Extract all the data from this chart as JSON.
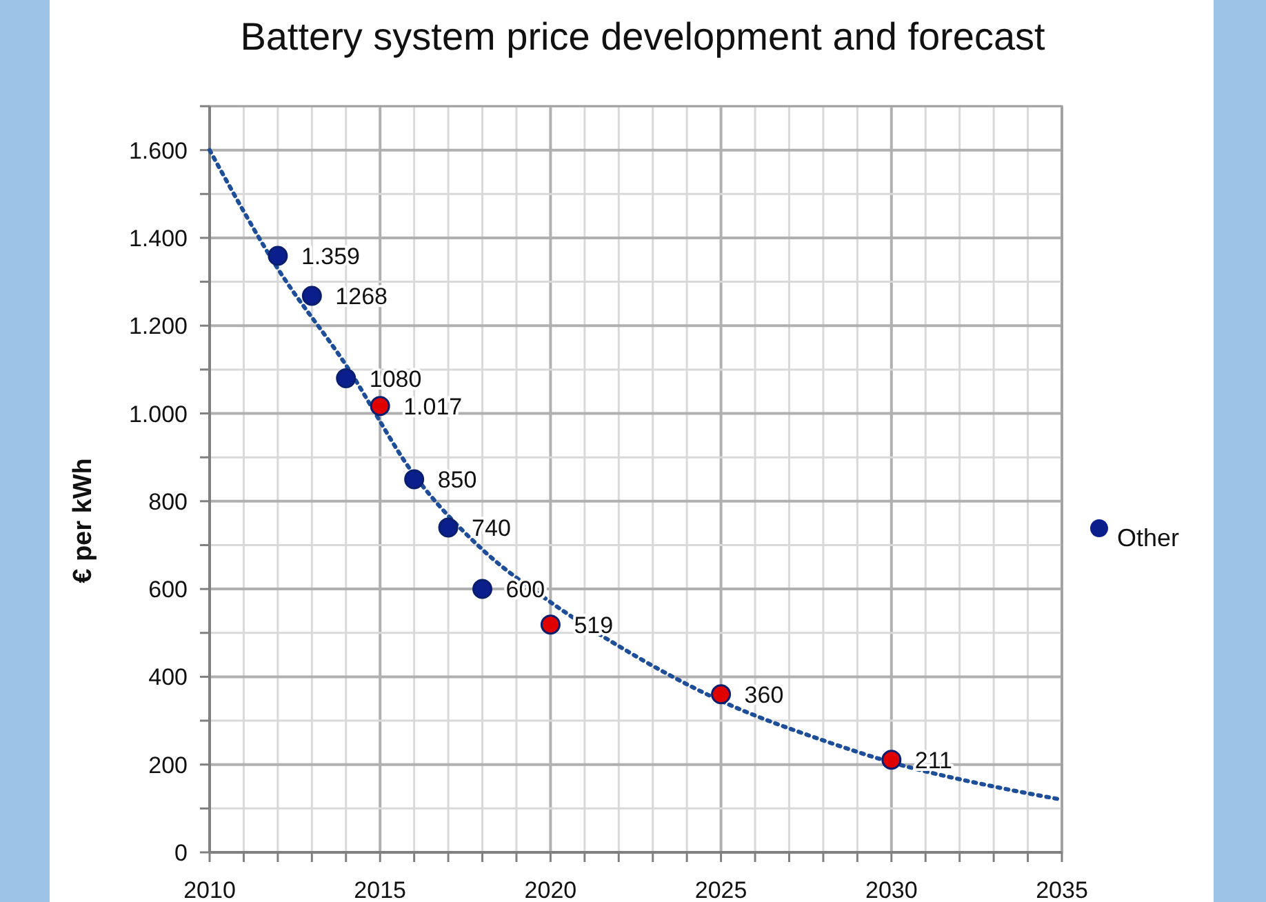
{
  "chart_data": {
    "type": "scatter",
    "title": "Battery system price development and forecast",
    "ylabel": "€ per kWh",
    "xlim": [
      2010,
      2035
    ],
    "xticks": [
      2010,
      {
        "value": 2011,
        "label": null
      },
      {
        "value": 2012,
        "label": null
      },
      {
        "value": 2013,
        "label": null
      },
      {
        "value": 2014,
        "label": null
      },
      2015,
      {
        "value": 2016,
        "label": null
      },
      {
        "value": 2017,
        "label": null
      },
      {
        "value": 2018,
        "label": null
      },
      {
        "value": 2019,
        "label": null
      },
      2020,
      {
        "value": 2021,
        "label": null
      },
      {
        "value": 2022,
        "label": null
      },
      {
        "value": 2023,
        "label": null
      },
      {
        "value": 2024,
        "label": null
      },
      2025,
      {
        "value": 2026,
        "label": null
      },
      {
        "value": 2027,
        "label": null
      },
      {
        "value": 2028,
        "label": null
      },
      {
        "value": 2029,
        "label": null
      },
      2030,
      {
        "value": 2031,
        "label": null
      },
      {
        "value": 2032,
        "label": null
      },
      {
        "value": 2033,
        "label": null
      },
      {
        "value": 2034,
        "label": null
      },
      2035
    ],
    "ylim": [
      0,
      1700
    ],
    "yticks": [
      0,
      {
        "value": 100,
        "label": null
      },
      200,
      {
        "value": 300,
        "label": null
      },
      400,
      {
        "value": 500,
        "label": null
      },
      600,
      {
        "value": 700,
        "label": null
      },
      800,
      {
        "value": 900,
        "label": null
      },
      {
        "value": 1000,
        "label": "1.000"
      },
      {
        "value": 1100,
        "label": null
      },
      {
        "value": 1200,
        "label": "1.200"
      },
      {
        "value": 1300,
        "label": null
      },
      {
        "value": 1400,
        "label": "1.400"
      },
      {
        "value": 1500,
        "label": null
      },
      {
        "value": 1600,
        "label": "1.600"
      },
      {
        "value": 1700,
        "label": null
      }
    ],
    "grid": true,
    "legend": "right",
    "marker": "circle",
    "line_style": "dotted",
    "series": [
      {
        "type": "line",
        "color": "#1f4e99",
        "marker": "none",
        "x": [
          2010,
          2012,
          2014,
          2016,
          2018,
          2020,
          2022,
          2025,
          2028,
          2030,
          2033,
          2035
        ],
        "values": [
          1600,
          1330,
          1110,
          860,
          690,
          570,
          470,
          345,
          255,
          205,
          150,
          120
        ]
      },
      {
        "color": "#e00000",
        "x": [
          2015,
          2020,
          2025,
          2030
        ],
        "values": [
          1017,
          519,
          360,
          211
        ],
        "value_labels": [
          "1.017",
          "519",
          "360",
          "211"
        ]
      },
      {
        "name": "Other",
        "color": "#0a1e8c",
        "x": [
          2012,
          2013,
          2014,
          2016,
          2017,
          2018
        ],
        "values": [
          1359,
          1268,
          1080,
          850,
          740,
          600
        ],
        "value_labels": [
          "1.359",
          "1268",
          "1080",
          "850",
          "740",
          "600"
        ]
      }
    ]
  }
}
